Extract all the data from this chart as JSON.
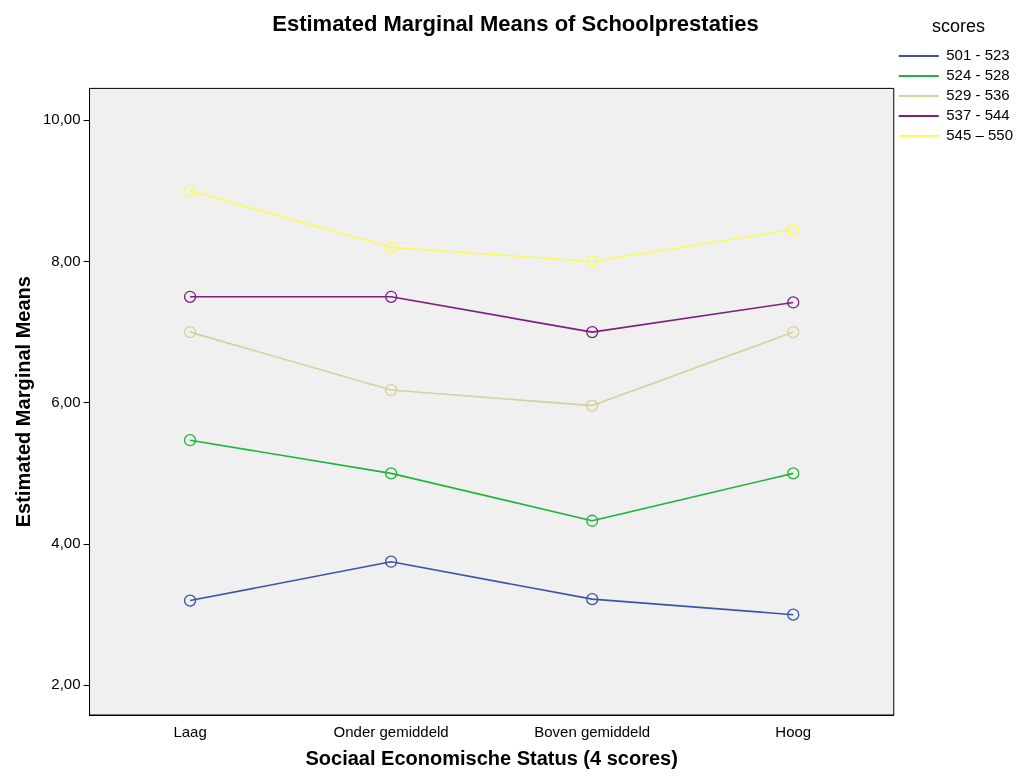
{
  "chart_data": {
    "type": "line",
    "title": "Estimated Marginal Means of Schoolprestaties",
    "xlabel": "Sociaal Economische Status (4 scores)",
    "ylabel": "Estimated Marginal Means",
    "legend_title": "scores",
    "categories": [
      "Laag",
      "Onder gemiddeld",
      "Boven gemiddeld",
      "Hoog"
    ],
    "series": [
      {
        "name": "501 - 523",
        "color": "#3e53a4",
        "values": [
          3.2,
          3.75,
          3.22,
          3.0
        ]
      },
      {
        "name": "524 - 528",
        "color": "#1fb53a",
        "values": [
          5.47,
          5.0,
          4.33,
          5.0
        ]
      },
      {
        "name": "529 - 536",
        "color": "#d6d09a",
        "values": [
          7.0,
          6.18,
          5.96,
          7.0
        ]
      },
      {
        "name": "537 - 544",
        "color": "#7b1f80",
        "values": [
          7.5,
          7.5,
          7.0,
          7.42
        ]
      },
      {
        "name": "545 – 550",
        "color": "#fafa5a",
        "values": [
          9.0,
          8.2,
          8.0,
          8.45
        ]
      }
    ],
    "ylim": [
      1.58,
      10.45
    ],
    "yticks": [
      {
        "value": 2,
        "label": "2,00"
      },
      {
        "value": 4,
        "label": "4,00"
      },
      {
        "value": 6,
        "label": "6,00"
      },
      {
        "value": 8,
        "label": "8,00"
      },
      {
        "value": 10,
        "label": "10,00"
      }
    ],
    "grid": false,
    "legend": "top right",
    "marker": "circle",
    "line_style": "solid"
  }
}
